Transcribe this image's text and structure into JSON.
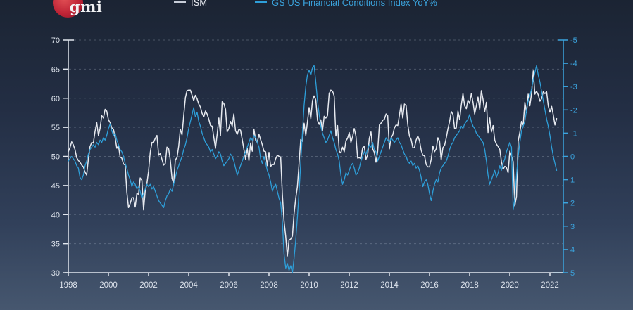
{
  "logo": {
    "text": "gmi",
    "circle_color": "#c02537"
  },
  "colors": {
    "background_top": "#1b2433",
    "background_bottom": "#46576f",
    "ism_line": "#e7eaf0",
    "fci_line": "#2e9fd9",
    "left_axis": "#e2e7ef",
    "right_axis": "#3ba4de",
    "gridline": "rgba(205,215,230,0.25)"
  },
  "chart_data": {
    "type": "line",
    "title": "",
    "grid": true,
    "legend_position": "top",
    "x": {
      "start_year": 1998,
      "points_per_year": 12,
      "tick_years": [
        1998,
        2000,
        2002,
        2004,
        2006,
        2008,
        2010,
        2012,
        2014,
        2016,
        2018,
        2020,
        2022
      ]
    },
    "axes": {
      "left": {
        "range": [
          30,
          70
        ],
        "ticks": [
          70,
          65,
          60,
          55,
          50,
          45,
          40,
          35,
          30
        ],
        "inverted": false
      },
      "right": {
        "range": [
          -5,
          5
        ],
        "ticks": [
          -5,
          -4,
          -3,
          -2,
          -1,
          0,
          1,
          2,
          3,
          4,
          5
        ],
        "inverted": true
      }
    },
    "series": [
      {
        "name": "ISM",
        "axis": "left",
        "color": "#e7eaf0",
        "values": [
          50.8,
          51.5,
          52.5,
          52.0,
          51.2,
          49.8,
          49.3,
          49.0,
          48.5,
          48.2,
          47.3,
          46.8,
          49.5,
          51.7,
          52.4,
          52.3,
          54.3,
          55.8,
          53.6,
          54.8,
          57.0,
          56.6,
          58.1,
          57.8,
          56.3,
          55.8,
          54.9,
          54.7,
          53.2,
          51.4,
          51.8,
          49.9,
          49.7,
          48.7,
          48.5,
          43.9,
          41.2,
          41.9,
          42.9,
          42.9,
          41.3,
          43.6,
          43.5,
          46.3,
          45.9,
          40.8,
          44.1,
          45.3,
          47.5,
          50.7,
          52.4,
          52.4,
          53.1,
          53.6,
          50.2,
          50.5,
          49.5,
          48.5,
          48.8,
          51.6,
          51.3,
          49.3,
          46.2,
          45.4,
          49.4,
          49.8,
          51.8,
          54.7,
          53.7,
          57.0,
          60.1,
          61.3,
          61.4,
          61.4,
          60.5,
          59.6,
          60.5,
          59.9,
          59.0,
          58.5,
          57.4,
          56.8,
          57.8,
          57.3,
          56.4,
          55.3,
          55.2,
          53.3,
          51.4,
          53.8,
          56.6,
          53.6,
          59.4,
          59.1,
          58.1,
          54.2,
          54.8,
          56.0,
          55.2,
          57.3,
          54.4,
          53.8,
          54.7,
          54.5,
          52.9,
          51.2,
          49.5,
          51.4,
          49.3,
          52.3,
          50.9,
          54.7,
          52.8,
          52.4,
          53.8,
          52.9,
          52.0,
          50.9,
          50.8,
          48.4,
          50.7,
          48.3,
          48.6,
          48.6,
          49.6,
          50.2,
          50.0,
          49.9,
          43.5,
          38.9,
          36.2,
          32.9,
          35.6,
          35.8,
          36.3,
          40.1,
          42.8,
          44.8,
          48.9,
          52.9,
          52.6,
          55.7,
          53.6,
          55.9,
          58.4,
          56.5,
          59.6,
          60.4,
          59.7,
          56.2,
          55.5,
          56.3,
          54.4,
          56.9,
          56.6,
          57.0,
          60.8,
          61.4,
          61.2,
          60.4,
          53.5,
          55.3,
          50.9,
          50.6,
          51.6,
          50.8,
          52.7,
          53.1,
          54.1,
          52.4,
          53.4,
          54.8,
          53.5,
          49.7,
          49.8,
          49.6,
          51.5,
          51.7,
          49.5,
          50.2,
          53.1,
          54.2,
          51.3,
          50.7,
          49.0,
          50.9,
          55.4,
          55.7,
          56.2,
          56.4,
          57.3,
          57.0,
          51.3,
          53.2,
          53.7,
          54.9,
          55.4,
          55.3,
          57.1,
          59.0,
          56.6,
          59.0,
          58.7,
          55.5,
          53.5,
          52.9,
          51.5,
          51.5,
          52.8,
          53.5,
          52.7,
          51.1,
          50.2,
          50.1,
          48.6,
          48.2,
          48.2,
          49.5,
          51.8,
          50.8,
          51.3,
          53.2,
          52.6,
          49.4,
          51.5,
          51.9,
          53.2,
          54.7,
          56.0,
          57.7,
          57.2,
          54.8,
          54.9,
          57.8,
          56.3,
          58.8,
          60.8,
          58.7,
          58.2,
          59.7,
          59.1,
          60.8,
          59.3,
          57.3,
          58.7,
          60.2,
          58.1,
          61.3,
          59.8,
          57.7,
          59.3,
          54.1,
          56.6,
          54.2,
          55.3,
          52.8,
          52.1,
          51.7,
          51.2,
          49.1,
          47.8,
          48.3,
          48.1,
          47.2,
          50.9,
          50.1,
          49.1,
          41.5,
          43.1,
          52.6,
          54.2,
          56.0,
          55.4,
          59.3,
          57.5,
          60.7,
          58.7,
          60.8,
          64.7,
          60.7,
          61.2,
          60.6,
          59.5,
          59.9,
          61.1,
          60.8,
          61.1,
          58.7,
          57.6,
          58.6,
          57.1,
          55.4,
          56.5
        ]
      },
      {
        "name": "GS US Financial Conditions Index YoY%",
        "axis": "right",
        "color": "#2e9fd9",
        "values": [
          0.2,
          0.1,
          0.0,
          0.1,
          0.2,
          0.4,
          0.5,
          0.9,
          1.0,
          0.8,
          0.4,
          0.2,
          -0.1,
          -0.3,
          -0.4,
          -0.5,
          -0.4,
          -0.6,
          -0.5,
          -0.7,
          -0.6,
          -0.8,
          -0.7,
          -0.9,
          -1.2,
          -1.4,
          -1.1,
          -0.9,
          -1.0,
          -0.7,
          -0.5,
          -0.3,
          -0.2,
          0.0,
          0.3,
          0.5,
          0.8,
          1.0,
          1.3,
          1.1,
          1.2,
          1.4,
          1.3,
          1.5,
          1.8,
          1.6,
          1.4,
          1.2,
          1.3,
          1.2,
          1.4,
          1.3,
          1.5,
          1.7,
          1.9,
          2.0,
          2.1,
          2.2,
          1.9,
          1.7,
          1.6,
          1.4,
          1.5,
          1.2,
          0.9,
          0.6,
          0.4,
          0.2,
          0.0,
          -0.3,
          -0.5,
          -0.8,
          -1.2,
          -1.5,
          -1.8,
          -2.1,
          -1.7,
          -1.9,
          -1.5,
          -1.3,
          -1.0,
          -0.8,
          -0.6,
          -0.5,
          -0.4,
          -0.2,
          -0.3,
          -0.1,
          0.1,
          0.0,
          -0.2,
          -0.1,
          0.2,
          0.4,
          0.3,
          0.2,
          0.1,
          -0.1,
          0.0,
          0.2,
          0.5,
          0.8,
          0.6,
          0.4,
          0.2,
          0.0,
          -0.2,
          -0.4,
          -0.6,
          -0.8,
          -0.7,
          -0.9,
          -0.8,
          -0.6,
          -0.4,
          0.1,
          0.3,
          0.0,
          0.3,
          0.6,
          0.8,
          1.1,
          1.5,
          1.3,
          1.2,
          1.5,
          1.8,
          2.0,
          2.8,
          4.2,
          4.8,
          4.6,
          4.9,
          4.7,
          5.0,
          4.4,
          3.6,
          2.6,
          1.5,
          0.3,
          -1.0,
          -2.2,
          -3.0,
          -3.5,
          -3.7,
          -3.5,
          -3.8,
          -3.9,
          -3.2,
          -2.4,
          -1.8,
          -1.3,
          -1.0,
          -0.8,
          -0.6,
          -0.7,
          -0.9,
          -1.1,
          -0.8,
          -0.6,
          -0.3,
          -0.1,
          0.2,
          0.8,
          1.2,
          1.0,
          0.7,
          0.8,
          0.6,
          0.4,
          0.3,
          0.5,
          0.8,
          0.7,
          0.5,
          0.2,
          0.0,
          -0.2,
          -0.1,
          -0.3,
          -0.5,
          -0.4,
          -0.6,
          -0.3,
          -0.2,
          0.2,
          0.0,
          -0.2,
          -0.4,
          -0.6,
          -0.8,
          -0.7,
          -0.6,
          -0.8,
          -0.7,
          -0.6,
          -0.7,
          -0.8,
          -0.6,
          -0.5,
          -0.3,
          -0.1,
          0.0,
          0.2,
          0.3,
          0.2,
          0.4,
          0.3,
          0.5,
          0.4,
          0.6,
          0.9,
          1.3,
          1.1,
          1.0,
          1.2,
          1.6,
          1.9,
          1.5,
          1.2,
          1.0,
          1.1,
          0.7,
          0.5,
          0.4,
          0.3,
          0.2,
          0.0,
          -0.3,
          -0.5,
          -0.6,
          -0.8,
          -0.9,
          -1.0,
          -1.1,
          -1.3,
          -1.2,
          -1.4,
          -1.5,
          -1.6,
          -1.8,
          -1.5,
          -1.3,
          -1.2,
          -1.0,
          -0.9,
          -0.8,
          -0.7,
          -0.6,
          -0.3,
          0.2,
          0.8,
          1.2,
          1.0,
          0.8,
          0.6,
          0.9,
          0.7,
          0.4,
          0.6,
          0.3,
          0.1,
          -0.2,
          -0.4,
          -0.6,
          -0.4,
          2.3,
          1.8,
          0.8,
          0.0,
          -0.6,
          -1.1,
          -1.3,
          -1.5,
          -2.0,
          -2.4,
          -2.6,
          -2.9,
          -3.3,
          -3.6,
          -3.9,
          -3.5,
          -3.2,
          -2.8,
          -2.4,
          -2.0,
          -1.6,
          -1.3,
          -0.9,
          -0.4,
          0.0,
          0.3,
          0.6
        ]
      }
    ]
  }
}
